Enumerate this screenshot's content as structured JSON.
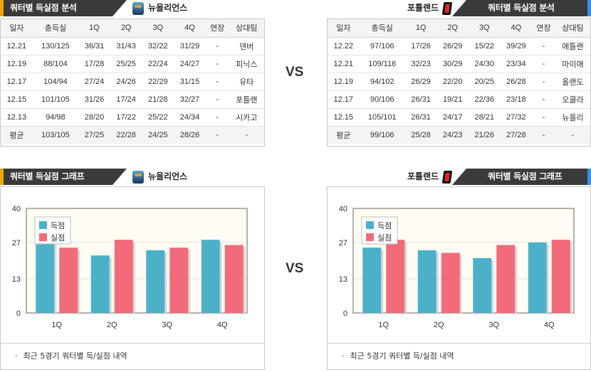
{
  "left": {
    "table_header": {
      "title": "쿼터별 득실점 분석",
      "team": "뉴올리언스"
    },
    "columns": [
      "일자",
      "총득실",
      "1Q",
      "2Q",
      "3Q",
      "4Q",
      "연장",
      "상대팀"
    ],
    "rows": [
      [
        "12.21",
        "130/125",
        "36/31",
        "31/43",
        "32/22",
        "31/29",
        "-",
        "덴버"
      ],
      [
        "12.19",
        "88/104",
        "17/28",
        "25/25",
        "22/24",
        "24/27",
        "-",
        "피닉스"
      ],
      [
        "12.17",
        "104/94",
        "27/24",
        "24/26",
        "22/29",
        "31/15",
        "-",
        "유타"
      ],
      [
        "12.15",
        "101/105",
        "31/26",
        "17/24",
        "21/28",
        "32/27",
        "-",
        "포틀랜"
      ],
      [
        "12.13",
        "94/98",
        "28/20",
        "17/22",
        "25/22",
        "24/34",
        "-",
        "시카고"
      ]
    ],
    "average": [
      "평균",
      "103/105",
      "27/25",
      "22/28",
      "24/25",
      "28/26",
      "-",
      "-"
    ],
    "chart_header": {
      "title": "쿼터별 득실점 그래프",
      "team": "뉴올리언스"
    },
    "footnote": "최근 5경기 쿼터별 득/실점 내역"
  },
  "right": {
    "table_header": {
      "title": "쿼터별 득실점 분석",
      "team": "포틀랜드"
    },
    "columns": [
      "일자",
      "총득실",
      "1Q",
      "2Q",
      "3Q",
      "4Q",
      "연장",
      "상대팀"
    ],
    "rows": [
      [
        "12.22",
        "97/106",
        "17/26",
        "26/29",
        "15/22",
        "39/29",
        "-",
        "애틀랜"
      ],
      [
        "12.21",
        "109/116",
        "32/23",
        "30/29",
        "24/30",
        "23/34",
        "-",
        "마이애"
      ],
      [
        "12.19",
        "94/102",
        "26/29",
        "22/20",
        "20/25",
        "26/28",
        "-",
        "올랜도"
      ],
      [
        "12.17",
        "90/106",
        "26/31",
        "19/21",
        "22/36",
        "23/18",
        "-",
        "오클라"
      ],
      [
        "12.15",
        "105/101",
        "26/31",
        "24/17",
        "28/21",
        "27/32",
        "-",
        "뉴올리"
      ]
    ],
    "average": [
      "평균",
      "99/106",
      "25/28",
      "24/23",
      "21/26",
      "27/28",
      "-",
      "-"
    ],
    "chart_header": {
      "title": "쿼터별 득실점 그래프",
      "team": "포틀랜드"
    },
    "footnote": "최근 5경기 쿼터별 득/실점 내역"
  },
  "vs_label": "VS",
  "icons": {
    "new_orleans_logo": "pelicans-logo",
    "portland_logo": "trail-blazers-logo"
  },
  "chart_data": [
    {
      "type": "bar",
      "team": "뉴올리언스",
      "categories": [
        "1Q",
        "2Q",
        "3Q",
        "4Q"
      ],
      "series": [
        {
          "name": "득점",
          "color": "#4cb1c8",
          "values": [
            27,
            22,
            24,
            28
          ]
        },
        {
          "name": "실점",
          "color": "#f26b7b",
          "values": [
            25,
            28,
            25,
            26
          ]
        }
      ],
      "yticks": [
        0,
        13,
        27,
        40
      ],
      "ylim": [
        0,
        40
      ],
      "legend": "top-left"
    },
    {
      "type": "bar",
      "team": "포틀랜드",
      "categories": [
        "1Q",
        "2Q",
        "3Q",
        "4Q"
      ],
      "series": [
        {
          "name": "득점",
          "color": "#4cb1c8",
          "values": [
            25,
            24,
            21,
            27
          ]
        },
        {
          "name": "실점",
          "color": "#f26b7b",
          "values": [
            28,
            23,
            26,
            28
          ]
        }
      ],
      "yticks": [
        0,
        13,
        27,
        40
      ],
      "ylim": [
        0,
        40
      ],
      "legend": "top-left"
    }
  ]
}
